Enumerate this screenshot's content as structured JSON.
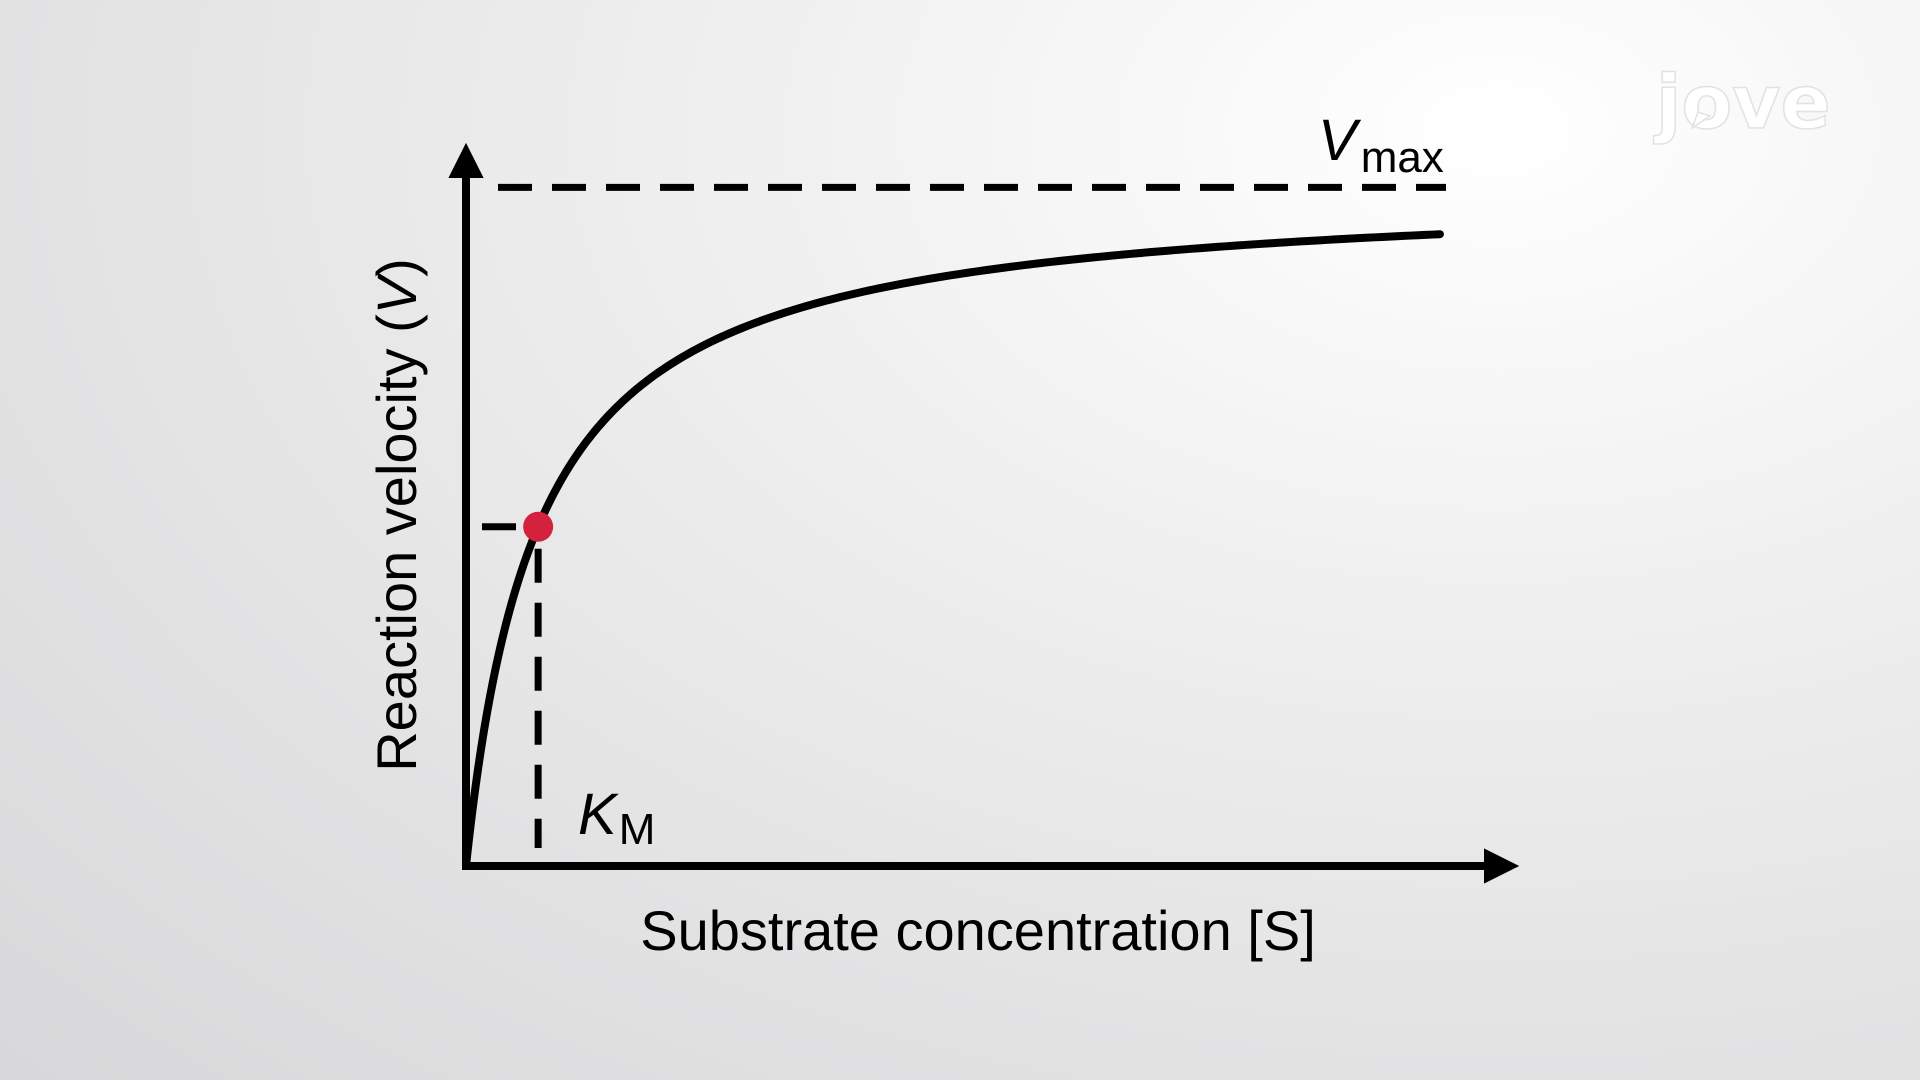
{
  "logo": {
    "text": "jove"
  },
  "chart_data": {
    "type": "line",
    "xlabel": "Substrate concentration [S]",
    "ylabel": "Reaction velocity (V)",
    "ylabel_parts": {
      "before": "Reaction velocity (",
      "italic": "V",
      "after": ")"
    },
    "vmax_label": {
      "main": "V",
      "sub": "max"
    },
    "km_label": {
      "main": "K",
      "sub": "M"
    },
    "xlim": [
      0,
      14
    ],
    "ylim": [
      0,
      1.12
    ],
    "series": [
      {
        "curve": "michaelis-menten",
        "vmax": 1.0,
        "km": 1.0,
        "x": [
          0,
          0.25,
          0.5,
          0.75,
          1,
          1.5,
          2,
          3,
          4,
          5,
          6,
          7,
          8,
          9,
          10,
          11,
          12,
          13.5
        ],
        "y": [
          0,
          0.2,
          0.333,
          0.429,
          0.5,
          0.6,
          0.667,
          0.75,
          0.8,
          0.833,
          0.857,
          0.875,
          0.889,
          0.9,
          0.909,
          0.917,
          0.923,
          0.931
        ]
      }
    ],
    "reference_lines": {
      "vmax_y": 1.0,
      "half_vmax_y": 0.5,
      "km_x": 1.0
    },
    "marker": {
      "x": 1.0,
      "y": 0.5,
      "color": "#d4213d"
    },
    "colors": {
      "curve": "#000000",
      "marker": "#d4213d"
    },
    "grid": false
  }
}
